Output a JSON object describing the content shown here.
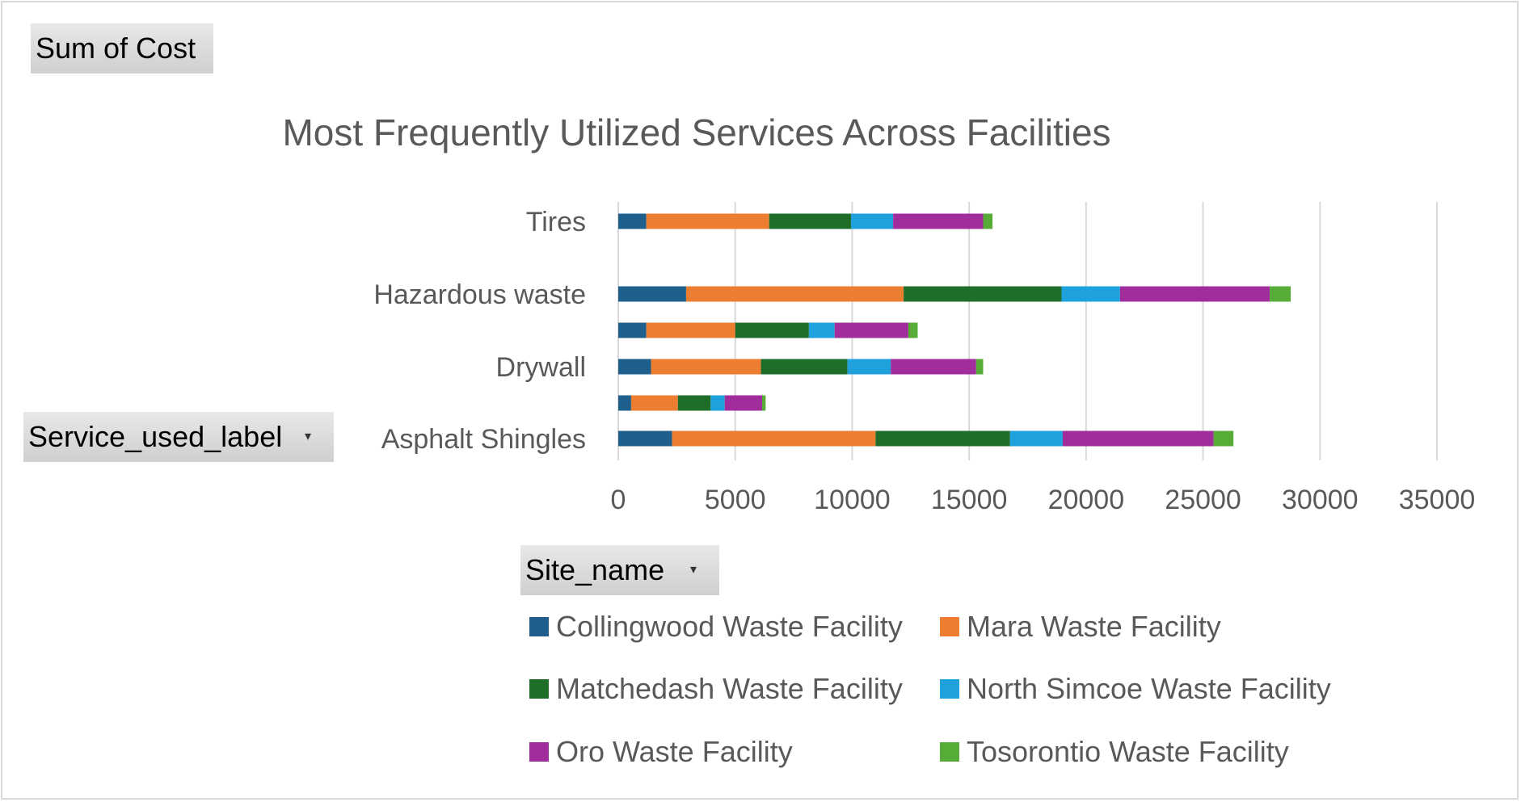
{
  "pivot": {
    "values_field": "Sum of Cost",
    "rows_field": "Service_used_label",
    "legend_field": "Site_name",
    "dropdown_glyph": "▾"
  },
  "chart_data": {
    "type": "bar",
    "orientation": "horizontal",
    "stacked": true,
    "title": "Most Frequently Utilized Services Across Facilities",
    "xlabel": "",
    "ylabel": "",
    "xlim": [
      0,
      35000
    ],
    "xticks": [
      0,
      5000,
      10000,
      15000,
      20000,
      25000,
      30000,
      35000
    ],
    "grid": true,
    "legend_position": "bottom",
    "categories": [
      "Tires",
      "",
      "Hazardous waste",
      "",
      "Drywall",
      "",
      "Asphalt Shingles"
    ],
    "series": [
      {
        "name": "Collingwood Waste Facility",
        "color": "#1f5f8b",
        "values": [
          1200,
          0,
          2900,
          1200,
          1400,
          550,
          2300
        ]
      },
      {
        "name": "Mara Waste Facility",
        "color": "#ed7d31",
        "values": [
          5250,
          0,
          9300,
          3800,
          4700,
          2000,
          8700
        ]
      },
      {
        "name": "Matchedash Waste Facility",
        "color": "#1e6e2a",
        "values": [
          3500,
          0,
          6750,
          3150,
          3700,
          1400,
          5750
        ]
      },
      {
        "name": "North Simcoe Waste Facility",
        "color": "#1ea1dc",
        "values": [
          1800,
          0,
          2500,
          1100,
          1850,
          600,
          2250
        ]
      },
      {
        "name": "Oro Waste Facility",
        "color": "#a12d9c",
        "values": [
          3850,
          0,
          6400,
          3150,
          3650,
          1600,
          6450
        ]
      },
      {
        "name": "Tosorontio Waste Facility",
        "color": "#56ac37",
        "values": [
          400,
          0,
          900,
          400,
          300,
          150,
          850
        ]
      }
    ]
  }
}
